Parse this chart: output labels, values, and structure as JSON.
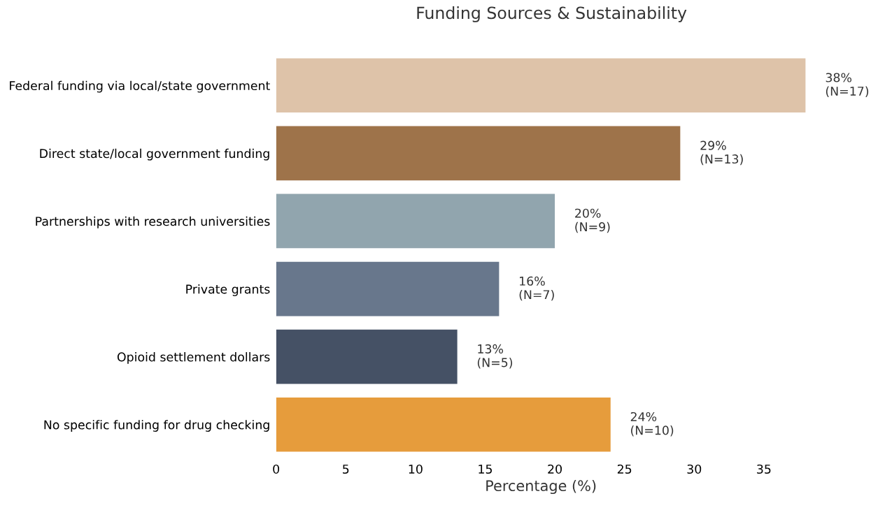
{
  "chart_data": {
    "type": "bar",
    "orientation": "horizontal",
    "title": "Funding Sources & Sustainability",
    "xlabel": "Percentage (%)",
    "categories": [
      "Federal funding via local/state government",
      "Direct state/local government funding",
      "Partnerships with research universities",
      "Private grants",
      "Opioid settlement dollars",
      "No specific funding for drug checking"
    ],
    "values": [
      38,
      29,
      20,
      16,
      13,
      24
    ],
    "colors": [
      "#dec3a9",
      "#9e734a",
      "#91a5ae",
      "#68778c",
      "#455165",
      "#e69c3c"
    ],
    "value_labels": [
      "38%\n(N=17)",
      "29%\n(N=13)",
      "20%\n(N=9)",
      "16%\n(N=7)",
      "13%\n(N=5)",
      "24%\n(N=10)"
    ],
    "xlim": [
      0,
      38
    ],
    "xticks": [
      0,
      5,
      10,
      15,
      20,
      25,
      30,
      35
    ],
    "grid": false,
    "legend": false
  }
}
